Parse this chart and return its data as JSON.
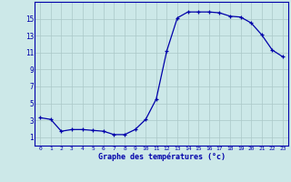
{
  "hours": [
    0,
    1,
    2,
    3,
    4,
    5,
    6,
    7,
    8,
    9,
    10,
    11,
    12,
    13,
    14,
    15,
    16,
    17,
    18,
    19,
    20,
    21,
    22,
    23
  ],
  "temps": [
    3.3,
    3.1,
    1.7,
    1.9,
    1.9,
    1.8,
    1.7,
    1.3,
    1.3,
    1.9,
    3.1,
    5.5,
    11.2,
    15.1,
    15.8,
    15.8,
    15.8,
    15.7,
    15.3,
    15.2,
    14.5,
    13.1,
    11.3,
    10.5
  ],
  "line_color": "#0000aa",
  "marker": "+",
  "bg_color": "#cce8e8",
  "grid_color": "#aac8c8",
  "xlabel": "Graphe des températures (°c)",
  "xlabel_color": "#0000aa",
  "tick_color": "#0000aa",
  "ylim": [
    0,
    17
  ],
  "xlim": [
    -0.5,
    23.5
  ],
  "yticks": [
    1,
    3,
    5,
    7,
    9,
    11,
    13,
    15
  ],
  "xtick_labels": [
    "0",
    "1",
    "2",
    "3",
    "4",
    "5",
    "6",
    "7",
    "8",
    "9",
    "10",
    "11",
    "12",
    "13",
    "14",
    "15",
    "16",
    "17",
    "18",
    "19",
    "20",
    "21",
    "22",
    "23"
  ]
}
